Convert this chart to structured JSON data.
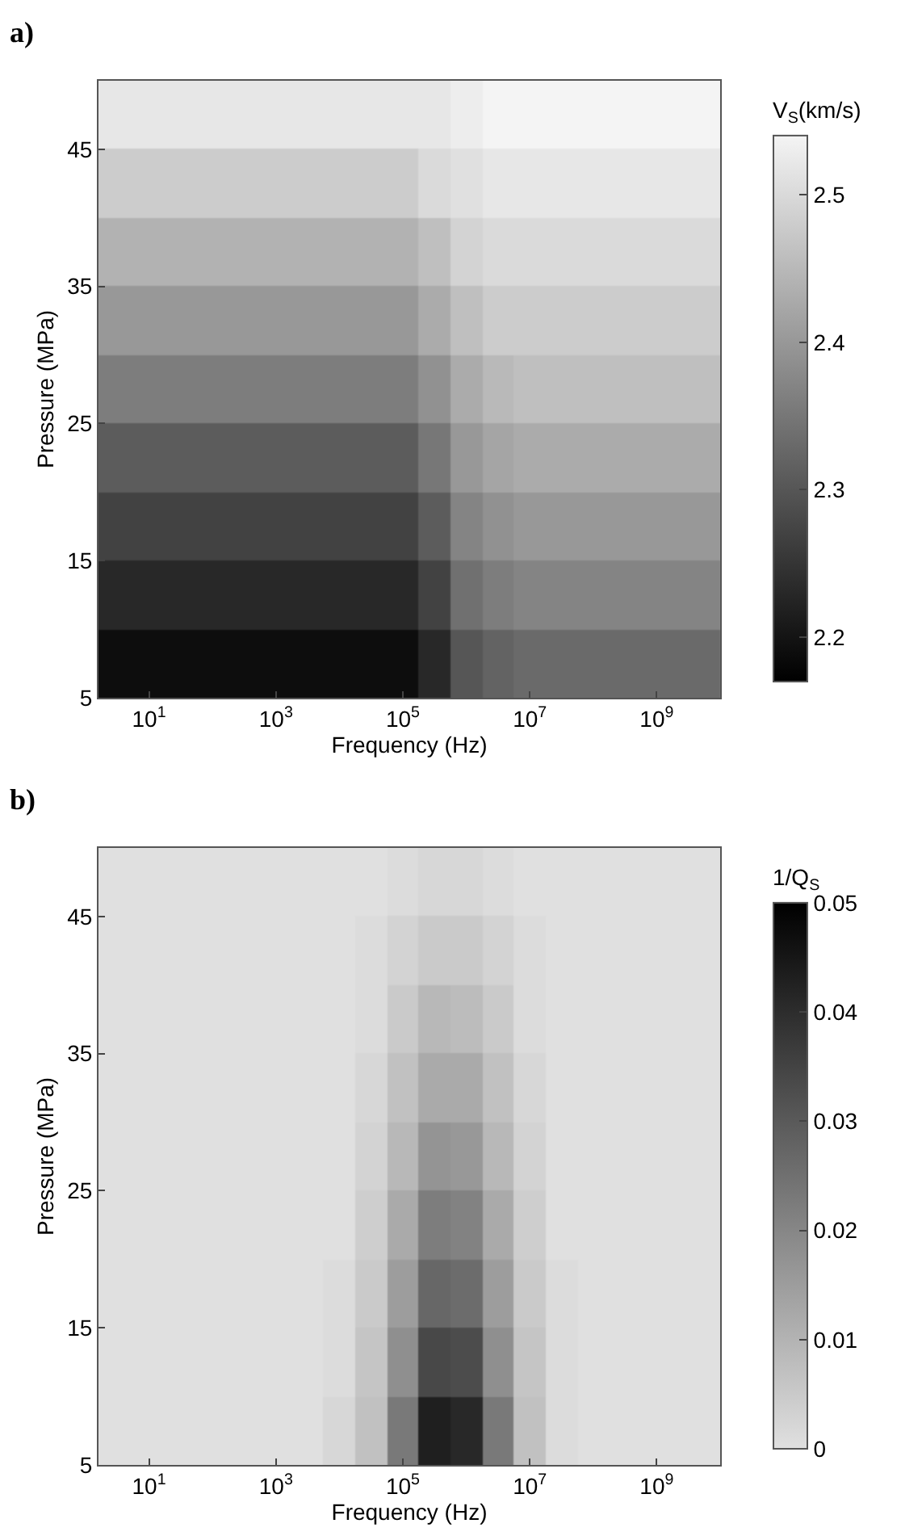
{
  "chart_data": [
    {
      "type": "heatmap",
      "title": "a)",
      "xlabel": "Frequency (Hz)",
      "ylabel": "Pressure (MPa)",
      "clabel": "V$_{S}$(km/s)",
      "log": "x",
      "x": [
        3.162,
        10,
        31.62,
        100,
        316.2,
        1000,
        3162,
        10000,
        31620,
        100000,
        316200,
        1000000,
        3162000,
        10000000,
        31620000,
        100000000,
        316200000,
        1000000000,
        3162000000
      ],
      "y": [
        7.5,
        12.5,
        17.5,
        22.5,
        27.5,
        32.5,
        37.5,
        42.5,
        47.5
      ],
      "xlim": [
        1.6,
        10000000000
      ],
      "ylim": [
        5,
        50
      ],
      "xticks": [
        {
          "value": 10,
          "label": "10$^{1}$"
        },
        {
          "value": 1000,
          "label": "10$^{3}$"
        },
        {
          "value": 100000,
          "label": "10$^{5}$"
        },
        {
          "value": 10000000,
          "label": "10$^{7}$"
        },
        {
          "value": 1000000000,
          "label": "10$^{9}$"
        }
      ],
      "yticks": [
        5,
        15,
        25,
        35,
        45
      ],
      "clim": [
        2.17,
        2.54
      ],
      "cticks": [
        2.2,
        2.3,
        2.4,
        2.5
      ],
      "cells": [
        [
          2.19,
          2.19,
          2.19,
          2.19,
          2.19,
          2.19,
          2.19,
          2.19,
          2.19,
          2.19,
          2.23,
          2.3,
          2.32,
          2.33,
          2.33,
          2.33,
          2.33,
          2.33,
          2.33
        ],
        [
          2.23,
          2.23,
          2.23,
          2.23,
          2.23,
          2.23,
          2.23,
          2.23,
          2.23,
          2.23,
          2.27,
          2.34,
          2.36,
          2.37,
          2.37,
          2.37,
          2.37,
          2.37,
          2.37
        ],
        [
          2.27,
          2.27,
          2.27,
          2.27,
          2.27,
          2.27,
          2.27,
          2.27,
          2.27,
          2.27,
          2.31,
          2.37,
          2.39,
          2.4,
          2.4,
          2.4,
          2.4,
          2.4,
          2.4
        ],
        [
          2.31,
          2.31,
          2.31,
          2.31,
          2.31,
          2.31,
          2.31,
          2.31,
          2.31,
          2.31,
          2.35,
          2.4,
          2.42,
          2.43,
          2.43,
          2.43,
          2.43,
          2.43,
          2.43
        ],
        [
          2.36,
          2.36,
          2.36,
          2.36,
          2.36,
          2.36,
          2.36,
          2.36,
          2.36,
          2.36,
          2.39,
          2.43,
          2.45,
          2.46,
          2.46,
          2.46,
          2.46,
          2.46,
          2.46
        ],
        [
          2.4,
          2.4,
          2.4,
          2.4,
          2.4,
          2.4,
          2.4,
          2.4,
          2.4,
          2.4,
          2.43,
          2.46,
          2.48,
          2.48,
          2.48,
          2.48,
          2.48,
          2.48,
          2.48
        ],
        [
          2.44,
          2.44,
          2.44,
          2.44,
          2.44,
          2.44,
          2.44,
          2.44,
          2.44,
          2.44,
          2.46,
          2.49,
          2.5,
          2.5,
          2.5,
          2.5,
          2.5,
          2.5,
          2.5
        ],
        [
          2.48,
          2.48,
          2.48,
          2.48,
          2.48,
          2.48,
          2.48,
          2.48,
          2.48,
          2.48,
          2.5,
          2.51,
          2.52,
          2.52,
          2.52,
          2.52,
          2.52,
          2.52,
          2.52
        ],
        [
          2.52,
          2.52,
          2.52,
          2.52,
          2.52,
          2.52,
          2.52,
          2.52,
          2.52,
          2.52,
          2.52,
          2.53,
          2.54,
          2.54,
          2.54,
          2.54,
          2.54,
          2.54,
          2.54
        ]
      ]
    },
    {
      "type": "heatmap",
      "title": "b)",
      "xlabel": "Frequency (Hz)",
      "ylabel": "Pressure (MPa)",
      "clabel": "1/Q$_{S}$",
      "log": "x",
      "x": [
        3.162,
        10,
        31.62,
        100,
        316.2,
        1000,
        3162,
        10000,
        31620,
        100000,
        316200,
        1000000,
        3162000,
        10000000,
        31620000,
        100000000,
        316200000,
        1000000000,
        3162000000
      ],
      "y": [
        7.5,
        12.5,
        17.5,
        22.5,
        27.5,
        32.5,
        37.5,
        42.5,
        47.5
      ],
      "xlim": [
        1.6,
        10000000000
      ],
      "ylim": [
        5,
        50
      ],
      "xticks": [
        {
          "value": 10,
          "label": "10$^{1}$"
        },
        {
          "value": 1000,
          "label": "10$^{3}$"
        },
        {
          "value": 100000,
          "label": "10$^{5}$"
        },
        {
          "value": 10000000,
          "label": "10$^{7}$"
        },
        {
          "value": 1000000000,
          "label": "10$^{9}$"
        }
      ],
      "yticks": [
        5,
        15,
        25,
        35,
        45
      ],
      "clim": [
        0,
        0.05
      ],
      "cticks": [
        0,
        0.01,
        0.02,
        0.03,
        0.04,
        0.05
      ],
      "cells": [
        [
          0,
          0,
          0,
          0,
          0,
          0,
          0,
          0.002,
          0.007,
          0.023,
          0.043,
          0.041,
          0.023,
          0.007,
          0.001,
          0,
          0,
          0,
          0
        ],
        [
          0,
          0,
          0,
          0,
          0,
          0,
          0,
          0.001,
          0.006,
          0.018,
          0.034,
          0.033,
          0.018,
          0.006,
          0.001,
          0,
          0,
          0,
          0
        ],
        [
          0,
          0,
          0,
          0,
          0,
          0,
          0,
          0.001,
          0.005,
          0.015,
          0.027,
          0.026,
          0.015,
          0.005,
          0.001,
          0,
          0,
          0,
          0
        ],
        [
          0,
          0,
          0,
          0,
          0,
          0,
          0,
          0,
          0.004,
          0.012,
          0.022,
          0.021,
          0.012,
          0.004,
          0,
          0,
          0,
          0,
          0
        ],
        [
          0,
          0,
          0,
          0,
          0,
          0,
          0,
          0,
          0.003,
          0.009,
          0.017,
          0.016,
          0.009,
          0.003,
          0,
          0,
          0,
          0,
          0
        ],
        [
          0,
          0,
          0,
          0,
          0,
          0,
          0,
          0,
          0.002,
          0.007,
          0.012,
          0.012,
          0.007,
          0.002,
          0,
          0,
          0,
          0,
          0
        ],
        [
          0,
          0,
          0,
          0,
          0,
          0,
          0,
          0,
          0.001,
          0.005,
          0.009,
          0.008,
          0.005,
          0.001,
          0,
          0,
          0,
          0,
          0
        ],
        [
          0,
          0,
          0,
          0,
          0,
          0,
          0,
          0,
          0.001,
          0.003,
          0.005,
          0.005,
          0.003,
          0.001,
          0,
          0,
          0,
          0,
          0
        ],
        [
          0,
          0,
          0,
          0,
          0,
          0,
          0,
          0,
          0,
          0.001,
          0.002,
          0.002,
          0.001,
          0,
          0,
          0,
          0,
          0,
          0
        ]
      ]
    }
  ]
}
